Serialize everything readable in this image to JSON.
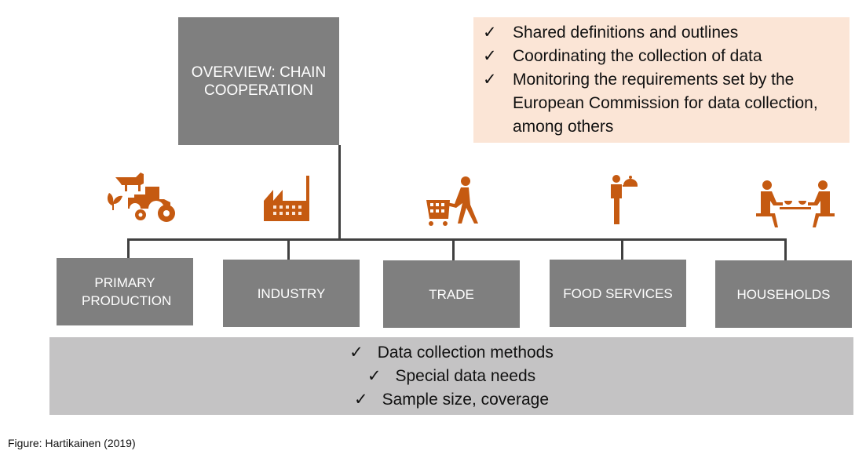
{
  "overview": {
    "title": "OVERVIEW: CHAIN COOPERATION"
  },
  "coordination_tasks": [
    {
      "check": "✓",
      "text": "Shared definitions and outlines"
    },
    {
      "check": "✓",
      "text": "Coordinating the collection of data"
    },
    {
      "check": "✓",
      "text": "Monitoring the requirements set by the European Commission for data collection, among others"
    }
  ],
  "sectors": [
    {
      "label": "PRIMARY PRODUCTION",
      "icon": "cow-tractor-plant-icon"
    },
    {
      "label": "INDUSTRY",
      "icon": "factory-icon"
    },
    {
      "label": "TRADE",
      "icon": "shopping-cart-person-icon"
    },
    {
      "label": "FOOD SERVICES",
      "icon": "waiter-icon"
    },
    {
      "label": "HOUSEHOLDS",
      "icon": "people-dining-icon"
    }
  ],
  "sector_tasks": [
    {
      "check": "✓",
      "text": "Data collection methods"
    },
    {
      "check": "✓",
      "text": "Special data needs"
    },
    {
      "check": "✓",
      "text": "Sample size, coverage"
    }
  ],
  "caption": "Figure: Hartikainen (2019)",
  "colors": {
    "box": "#7f7f7f",
    "peach": "#fbe5d6",
    "bottom": "#c4c3c4",
    "icon": "#c55a11"
  }
}
